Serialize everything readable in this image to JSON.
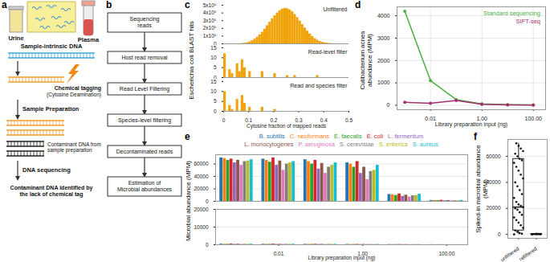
{
  "figure_labels": [
    "a",
    "b",
    "c",
    "d",
    "e",
    "f"
  ],
  "diagram_a": {
    "samples": [
      "Urine",
      "Plasma"
    ],
    "dna_label": "Sample-intrinsic DNA",
    "tagging": [
      "Chemical tagging",
      "(Cytosine Deamination)"
    ],
    "preparation": "Sample Preparation",
    "contaminant": [
      "Contaminant DNA from",
      "sample preparation"
    ],
    "sequencing": "DNA sequencing",
    "result": [
      "Contaminant DNA identified by",
      "the lack of chemical tag"
    ]
  },
  "flowchart_b": {
    "steps": [
      [
        "Sequencing",
        "reads"
      ],
      [
        "Host read removal"
      ],
      [
        "Read Level Filtering"
      ],
      [
        "Species-level filtering"
      ],
      [
        "Decontaminated reads"
      ],
      [
        "Estimation of",
        "Microbial abundances"
      ]
    ]
  },
  "chart_data": [
    {
      "type": "histogram",
      "ylabel": "Escherichia coli BLAST hits",
      "annotation": "Unfiltered",
      "color": "#f0a30a",
      "bins": [
        0,
        0.01,
        0.02,
        0.03,
        0.04,
        0.05,
        0.06,
        0.07,
        0.08,
        0.09,
        0.1,
        0.11,
        0.12,
        0.13,
        0.14,
        0.15,
        0.16,
        0.17,
        0.18,
        0.19,
        0.2,
        0.21,
        0.22,
        0.23,
        0.24,
        0.25,
        0.26,
        0.27,
        0.28,
        0.29,
        0.3,
        0.31,
        0.32,
        0.33,
        0.34,
        0.35,
        0.36,
        0.37,
        0.38,
        0.39,
        0.4,
        0.41,
        0.42,
        0.43,
        0.44,
        0.45,
        0.46,
        0.47,
        0.48,
        0.49,
        0.5
      ],
      "values": [
        0,
        0,
        0,
        0,
        0,
        500,
        1500,
        4000,
        8000,
        15000,
        25000,
        40000,
        60000,
        85000,
        115000,
        150000,
        190000,
        235000,
        280000,
        325000,
        365000,
        400000,
        430000,
        450000,
        460000,
        455000,
        440000,
        415000,
        380000,
        340000,
        295000,
        250000,
        205000,
        165000,
        128000,
        95000,
        68000,
        47000,
        31000,
        20000,
        12000,
        7000,
        4000,
        2000,
        1000,
        500,
        200,
        0,
        0,
        0
      ],
      "xlim": [
        0,
        0.5
      ],
      "ylim": [
        0,
        500000
      ],
      "yticks": [
        0,
        {
          "value": 100000,
          "label": "1x10⁵"
        },
        {
          "value": 200000,
          "label": "2x10⁵"
        },
        {
          "value": 300000,
          "label": "3x10⁵"
        },
        {
          "value": 400000,
          "label": "4x10⁵"
        },
        {
          "value": 500000,
          "label": "5x10⁵"
        }
      ],
      "tick_labels": "y"
    },
    {
      "type": "histogram",
      "annotation": "Read-level filter",
      "color": "#f0a30a",
      "bins": [
        0,
        0.01,
        0.02,
        0.03,
        0.04,
        0.05,
        0.06,
        0.07,
        0.08,
        0.09,
        0.1,
        0.11,
        0.12,
        0.13,
        0.14,
        0.15,
        0.16,
        0.17,
        0.18,
        0.19,
        0.2,
        0.21,
        0.22,
        0.23,
        0.24,
        0.25,
        0.26,
        0.27,
        0.28,
        0.29,
        0.3,
        0.31,
        0.32,
        0.33,
        0.34,
        0.35,
        0.36,
        0.37,
        0.38,
        0.39,
        0.4,
        0.41,
        0.42,
        0.43,
        0.44,
        0.45,
        0.46,
        0.47,
        0.48,
        0.49,
        0.5
      ],
      "values": [
        12,
        0,
        4,
        2,
        0,
        7,
        3,
        9,
        5,
        0,
        3,
        0,
        0,
        0,
        0,
        3,
        0,
        0,
        0,
        0,
        2,
        0,
        0,
        0,
        0,
        1,
        0,
        0,
        1,
        0,
        0,
        0,
        0,
        0,
        0,
        0,
        0,
        1,
        0,
        0,
        0,
        0,
        0,
        0,
        0,
        0,
        0,
        0,
        0,
        0
      ],
      "xlim": [
        0,
        0.5
      ],
      "ylim": [
        0,
        15
      ],
      "yticks": [
        0,
        5,
        10,
        15
      ],
      "tick_labels": "y"
    },
    {
      "type": "histogram",
      "annotation": "Read and species filter",
      "color": "#f0a30a",
      "xlabel": "Cytosine fraction of mapped reads",
      "bins": [
        0,
        0.01,
        0.02,
        0.03,
        0.04,
        0.05,
        0.06,
        0.07,
        0.08,
        0.09,
        0.1,
        0.11,
        0.12,
        0.13,
        0.14,
        0.15,
        0.16,
        0.17,
        0.18,
        0.19,
        0.2,
        0.21,
        0.22,
        0.23,
        0.24,
        0.25,
        0.26,
        0.27,
        0.28,
        0.29,
        0.3,
        0.31,
        0.32,
        0.33,
        0.34,
        0.35,
        0.36,
        0.37,
        0.38,
        0.39,
        0.4,
        0.41,
        0.42,
        0.43,
        0.44,
        0.45,
        0.46,
        0.47,
        0.48,
        0.49,
        0.5
      ],
      "values": [
        10,
        0,
        3,
        1,
        0,
        6,
        0,
        8,
        4,
        0,
        2,
        0,
        0,
        0,
        0,
        2,
        0,
        0,
        0,
        0,
        1,
        0,
        0,
        0,
        0,
        0,
        0,
        0,
        0,
        0,
        0,
        0,
        0,
        0,
        0,
        0,
        0,
        0,
        0,
        0,
        0,
        0,
        0,
        0,
        0,
        0,
        0,
        0,
        0,
        0
      ],
      "xlim": [
        0,
        0.5
      ],
      "ylim": [
        0,
        15
      ],
      "xticks": [
        0,
        0.1,
        0.2,
        0.3,
        0.4,
        0.5
      ],
      "yticks": [
        0,
        5,
        10,
        15
      ]
    },
    {
      "type": "line",
      "xlabel": "Library preparation input (ng)",
      "ylabel": "Cutibacterium acnes abundance (MPM)",
      "x": [
        0.001,
        0.01,
        0.1,
        1,
        10,
        100
      ],
      "series": [
        {
          "name": "Standard sequencing",
          "color": "#4daf4a",
          "values": [
            4200,
            1100,
            250,
            60,
            25,
            15
          ]
        },
        {
          "name": "SIFT-seq",
          "color": "#a4306f",
          "values": [
            130,
            90,
            210,
            40,
            20,
            10
          ]
        }
      ],
      "log": "x",
      "xlim": [
        0.0005,
        300
      ],
      "xticks": [
        0.01,
        {
          "value": 1,
          "label": "1.00"
        },
        {
          "value": 100,
          "label": "100.00"
        }
      ],
      "ylim": [
        -200,
        4400
      ],
      "yticks": [
        0,
        1000,
        2000,
        3000,
        4000
      ],
      "grid": true,
      "legend": "top-right",
      "marker": "circle"
    },
    {
      "type": "bar",
      "ylabel": "Microbial abundance (MPM)",
      "categories": [
        null,
        "0.01",
        null,
        "1.00",
        null,
        "100.00"
      ],
      "series": [
        {
          "name": "B. subtilis",
          "color": "#1f77b4",
          "values": [
            70000,
            68000,
            67000,
            62000,
            11000,
            1500
          ]
        },
        {
          "name": "C. neoformans",
          "color": "#ff7f0e",
          "values": [
            69000,
            66000,
            64000,
            60000,
            10500,
            1400
          ]
        },
        {
          "name": "E. faecalis",
          "color": "#2ca02c",
          "values": [
            66000,
            63000,
            60000,
            55000,
            9500,
            1200
          ]
        },
        {
          "name": "E. coli",
          "color": "#d62728",
          "values": [
            68000,
            70000,
            66000,
            64000,
            12000,
            1800
          ]
        },
        {
          "name": "L. fermentum",
          "color": "#9467bd",
          "values": [
            62000,
            58000,
            52000,
            45000,
            8000,
            900
          ]
        },
        {
          "name": "L. monocytogenes",
          "color": "#8c564b",
          "values": [
            66000,
            65000,
            61000,
            55000,
            10000,
            1300
          ]
        },
        {
          "name": "P. aeruginosa",
          "color": "#e377c2",
          "values": [
            58000,
            50000,
            45000,
            35000,
            7000,
            800
          ]
        },
        {
          "name": "S. cerevisiae",
          "color": "#7f7f7f",
          "values": [
            64000,
            60000,
            55000,
            48000,
            9000,
            1000
          ]
        },
        {
          "name": "S. enterica",
          "color": "#bcbd22",
          "values": [
            65000,
            62000,
            58000,
            50000,
            9500,
            1100
          ]
        },
        {
          "name": "S. aureus",
          "color": "#17becf",
          "values": [
            67000,
            64000,
            62000,
            58000,
            11500,
            1600
          ]
        }
      ],
      "ylim": [
        0,
        75000
      ],
      "yticks": [
        0,
        20000,
        40000,
        60000
      ],
      "grid": true,
      "legend": "top",
      "tick_labels": "y"
    },
    {
      "type": "bar",
      "xlabel": "Library preparation input (ng)",
      "categories": [
        null,
        "0.01",
        null,
        "1.00",
        null,
        "100.00"
      ],
      "series": [
        {
          "name": "B. subtilis",
          "color": "#1f77b4",
          "values": [
            350,
            300,
            250,
            200,
            150,
            80
          ]
        },
        {
          "name": "C. neoformans",
          "color": "#ff7f0e",
          "values": [
            300,
            280,
            240,
            180,
            120,
            60
          ]
        },
        {
          "name": "E. faecalis",
          "color": "#2ca02c",
          "values": [
            280,
            260,
            220,
            170,
            110,
            50
          ]
        },
        {
          "name": "E. coli",
          "color": "#d62728",
          "values": [
            400,
            350,
            300,
            220,
            160,
            90
          ]
        },
        {
          "name": "L. fermentum",
          "color": "#9467bd",
          "values": [
            250,
            230,
            200,
            150,
            100,
            40
          ]
        },
        {
          "name": "L. monocytogenes",
          "color": "#8c564b",
          "values": [
            320,
            290,
            250,
            190,
            130,
            70
          ]
        },
        {
          "name": "P. aeruginosa",
          "color": "#e377c2",
          "values": [
            220,
            200,
            180,
            140,
            90,
            40
          ]
        },
        {
          "name": "S. cerevisiae",
          "color": "#7f7f7f",
          "values": [
            260,
            240,
            210,
            160,
            110,
            50
          ]
        },
        {
          "name": "S. enterica",
          "color": "#bcbd22",
          "values": [
            290,
            270,
            230,
            170,
            120,
            60
          ]
        },
        {
          "name": "S. aureus",
          "color": "#17becf",
          "values": [
            330,
            300,
            260,
            200,
            140,
            70
          ]
        }
      ],
      "ylim": [
        0,
        20000
      ],
      "yticks": [
        0,
        10000,
        20000
      ],
      "grid": true
    },
    {
      "type": "box",
      "ylabel": "Spiked-in microbial abundance (MPM)",
      "categories": [
        "unfiltered",
        "refiltered"
      ],
      "min": [
        0,
        0
      ],
      "q1": [
        3000,
        80
      ],
      "median": [
        21000,
        150
      ],
      "q3": [
        58000,
        300
      ],
      "max": [
        70000,
        500
      ],
      "points": [
        [
          0,
          500,
          1000,
          2000,
          3000,
          5000,
          7000,
          9000,
          11000,
          13000,
          15000,
          17000,
          19000,
          20000,
          21000,
          22000,
          23000,
          25000,
          28000,
          31000,
          34000,
          37000,
          40000,
          43000,
          46000,
          49000,
          52000,
          55000,
          57000,
          58000,
          60000,
          62000,
          64000,
          66000,
          68000,
          70000
        ],
        [
          0,
          50,
          100,
          150,
          200,
          300,
          400,
          500
        ]
      ],
      "ylim": [
        -3000,
        73000
      ],
      "yticks": [
        0,
        20000,
        40000,
        60000
      ],
      "grid": true
    }
  ]
}
